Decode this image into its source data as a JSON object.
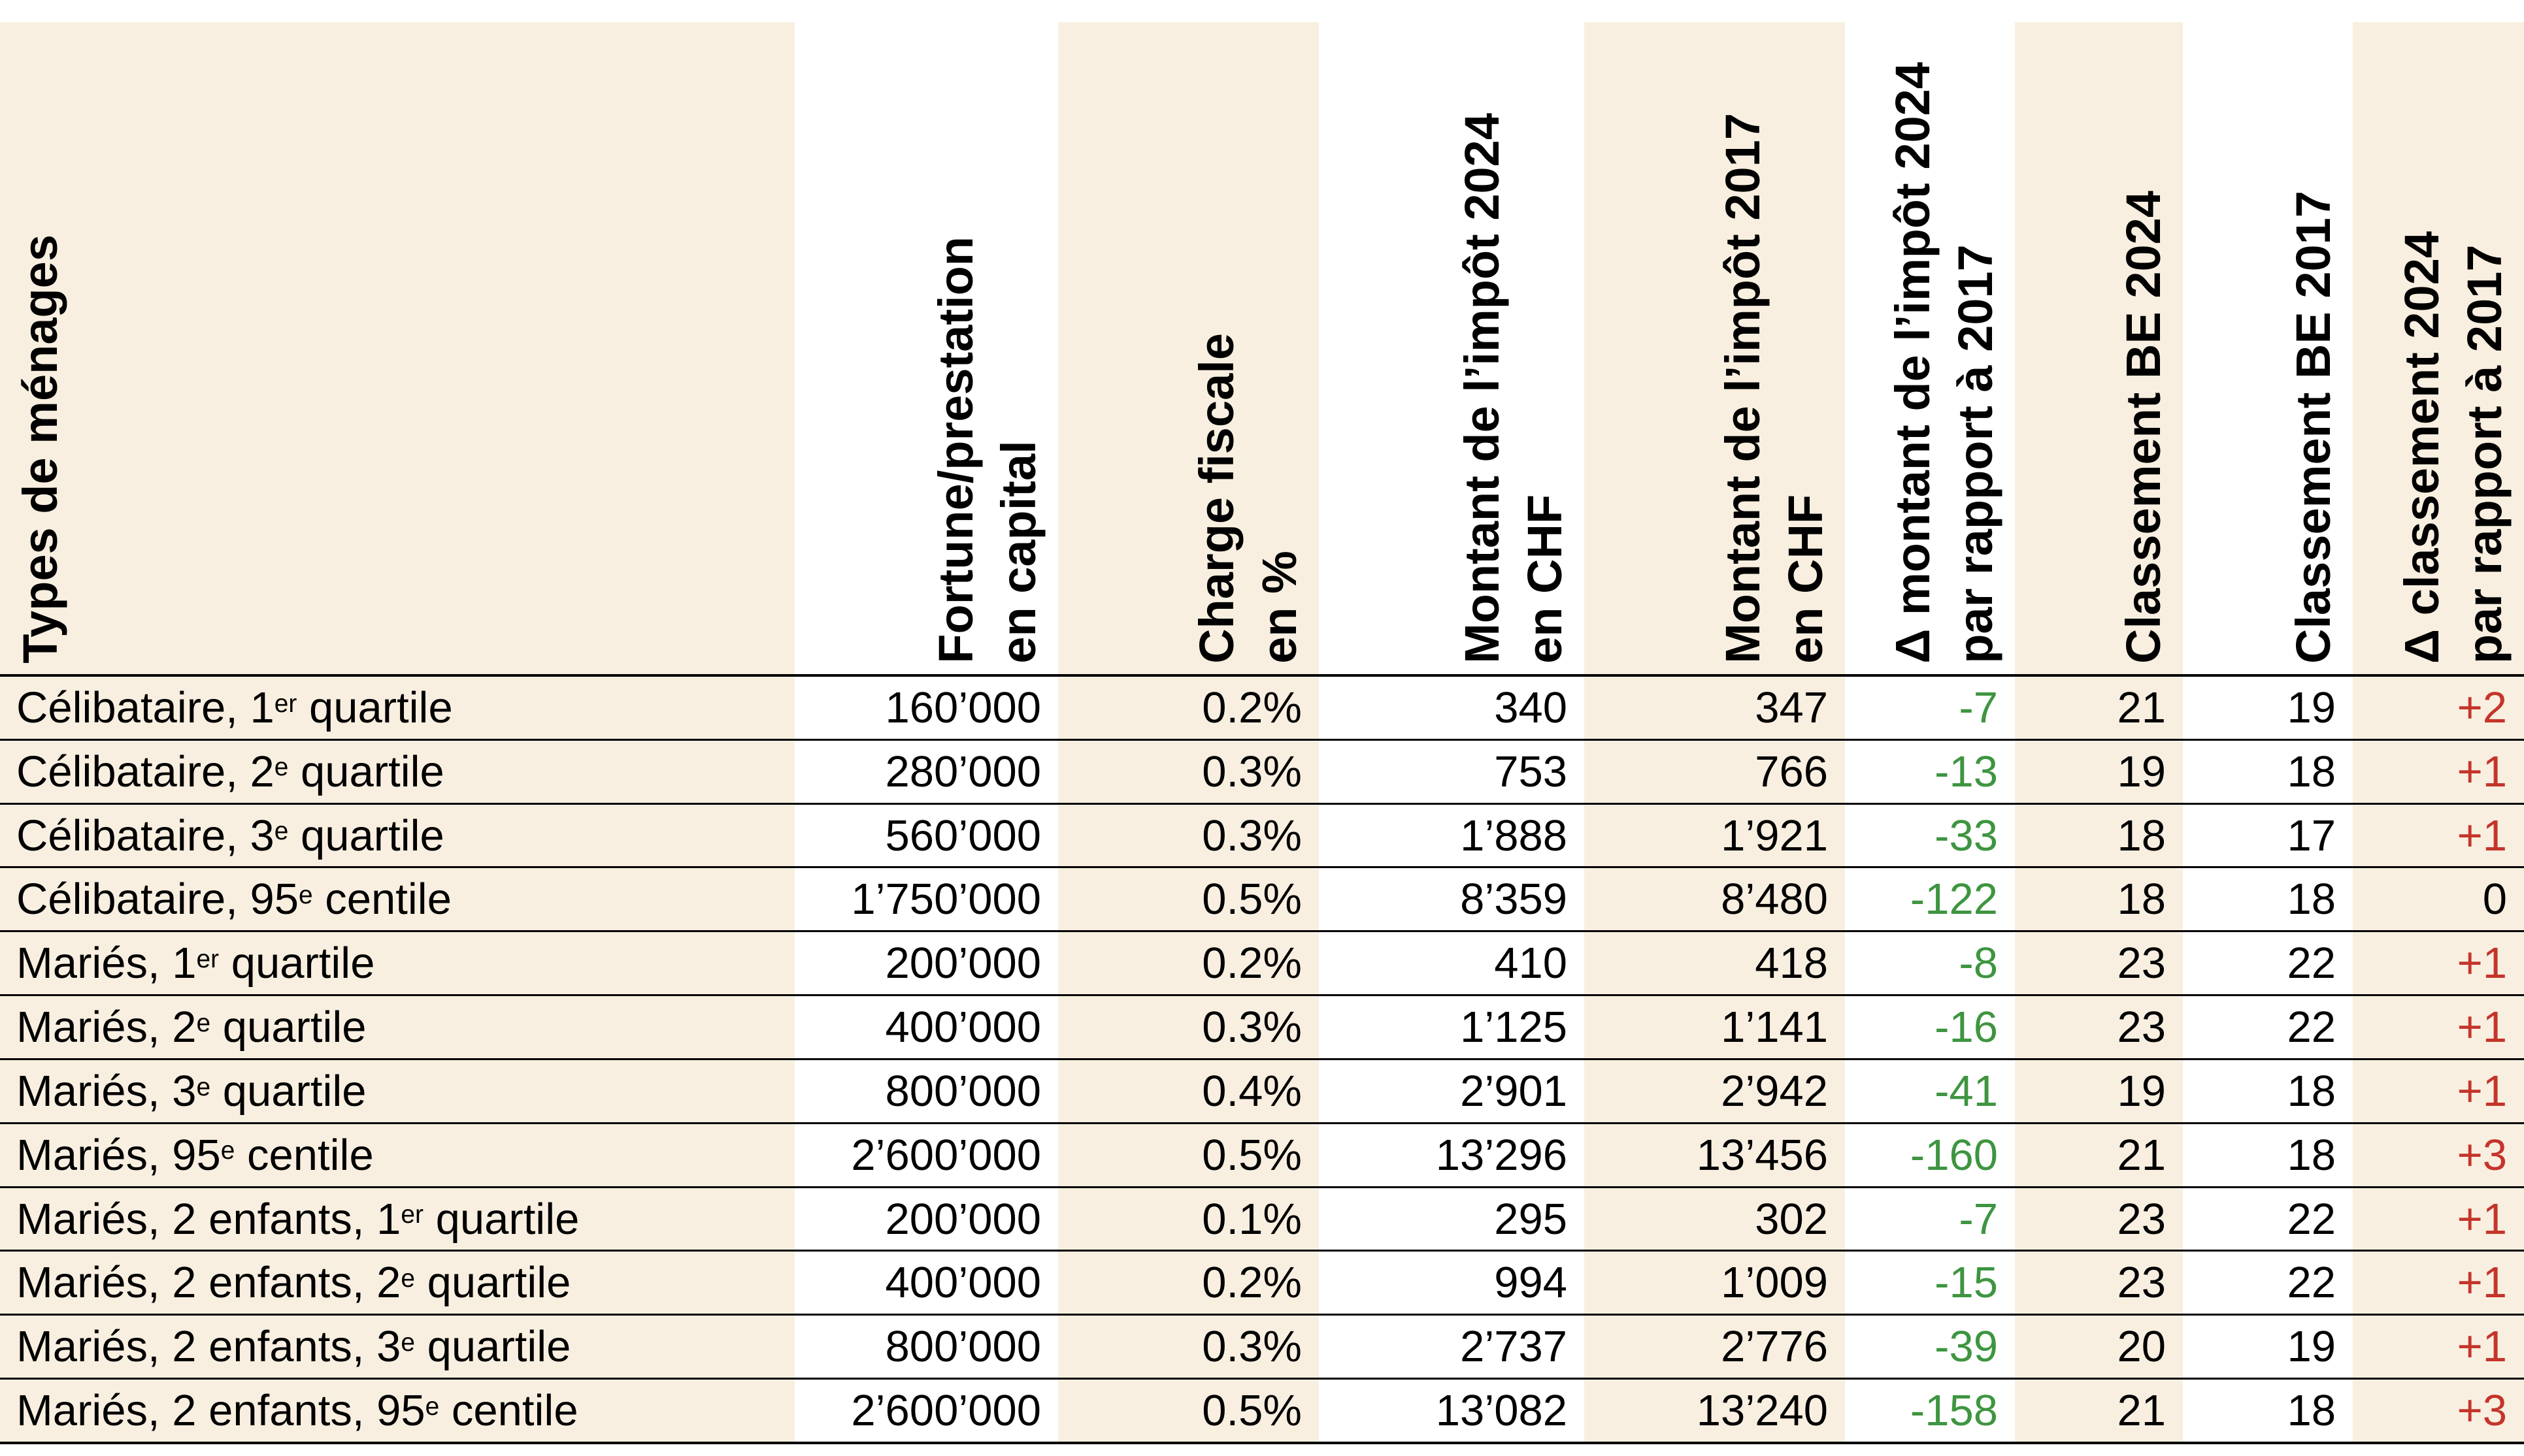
{
  "table": {
    "colors": {
      "shade": "#F8EFE0",
      "delta_tax_green": "#3E9540",
      "delta_rank_red": "#C5342A",
      "text": "#000000",
      "rule": "#000000"
    },
    "columns": [
      {
        "id": "household",
        "label_lines": [
          "Types de ménages"
        ],
        "align": "left",
        "shaded": true
      },
      {
        "id": "fortune",
        "label_lines": [
          "Fortune/prestation",
          "en capital"
        ],
        "align": "right",
        "shaded": false
      },
      {
        "id": "charge",
        "label_lines": [
          "Charge fiscale",
          "en %"
        ],
        "align": "right",
        "shaded": true
      },
      {
        "id": "tax2024",
        "label_lines": [
          "Montant de l’impôt 2024",
          "en CHF"
        ],
        "align": "right",
        "shaded": false
      },
      {
        "id": "tax2017",
        "label_lines": [
          "Montant de l’impôt 2017",
          "en CHF"
        ],
        "align": "right",
        "shaded": true
      },
      {
        "id": "delta_tax",
        "label_lines": [
          "Δ montant de l’impôt 2024",
          "par rapport à 2017"
        ],
        "align": "right",
        "shaded": false
      },
      {
        "id": "rank2024",
        "label_lines": [
          "Classement BE 2024"
        ],
        "align": "right",
        "shaded": true
      },
      {
        "id": "rank2017",
        "label_lines": [
          "Classement BE 2017"
        ],
        "align": "right",
        "shaded": false
      },
      {
        "id": "delta_rank",
        "label_lines": [
          "Δ classement 2024",
          "par rapport à 2017"
        ],
        "align": "right",
        "shaded": true
      }
    ],
    "rows": [
      {
        "household": [
          {
            "t": "Célibataire, 1"
          },
          {
            "t": "er",
            "sup": true
          },
          {
            "t": " quartile"
          }
        ],
        "fortune": "160’000",
        "charge": "0.2%",
        "tax2024": "340",
        "tax2017": "347",
        "delta_tax": "-7",
        "rank2024": "21",
        "rank2017": "19",
        "delta_rank": "+2"
      },
      {
        "household": [
          {
            "t": "Célibataire, 2"
          },
          {
            "t": "e",
            "sup": true
          },
          {
            "t": " quartile"
          }
        ],
        "fortune": "280’000",
        "charge": "0.3%",
        "tax2024": "753",
        "tax2017": "766",
        "delta_tax": "-13",
        "rank2024": "19",
        "rank2017": "18",
        "delta_rank": "+1"
      },
      {
        "household": [
          {
            "t": "Célibataire, 3"
          },
          {
            "t": "e",
            "sup": true
          },
          {
            "t": " quartile"
          }
        ],
        "fortune": "560’000",
        "charge": "0.3%",
        "tax2024": "1’888",
        "tax2017": "1’921",
        "delta_tax": "-33",
        "rank2024": "18",
        "rank2017": "17",
        "delta_rank": "+1"
      },
      {
        "household": [
          {
            "t": "Célibataire, 95"
          },
          {
            "t": "e",
            "sup": true
          },
          {
            "t": " centile"
          }
        ],
        "fortune": "1’750’000",
        "charge": "0.5%",
        "tax2024": "8’359",
        "tax2017": "8’480",
        "delta_tax": "-122",
        "rank2024": "18",
        "rank2017": "18",
        "delta_rank": "0"
      },
      {
        "household": [
          {
            "t": "Mariés, 1"
          },
          {
            "t": "er",
            "sup": true
          },
          {
            "t": " quartile"
          }
        ],
        "fortune": "200’000",
        "charge": "0.2%",
        "tax2024": "410",
        "tax2017": "418",
        "delta_tax": "-8",
        "rank2024": "23",
        "rank2017": "22",
        "delta_rank": "+1"
      },
      {
        "household": [
          {
            "t": "Mariés, 2"
          },
          {
            "t": "e",
            "sup": true
          },
          {
            "t": " quartile"
          }
        ],
        "fortune": "400’000",
        "charge": "0.3%",
        "tax2024": "1’125",
        "tax2017": "1’141",
        "delta_tax": "-16",
        "rank2024": "23",
        "rank2017": "22",
        "delta_rank": "+1"
      },
      {
        "household": [
          {
            "t": "Mariés, 3"
          },
          {
            "t": "e",
            "sup": true
          },
          {
            "t": " quartile"
          }
        ],
        "fortune": "800’000",
        "charge": "0.4%",
        "tax2024": "2’901",
        "tax2017": "2’942",
        "delta_tax": "-41",
        "rank2024": "19",
        "rank2017": "18",
        "delta_rank": "+1"
      },
      {
        "household": [
          {
            "t": "Mariés, 95"
          },
          {
            "t": "e",
            "sup": true
          },
          {
            "t": " centile"
          }
        ],
        "fortune": "2’600’000",
        "charge": "0.5%",
        "tax2024": "13’296",
        "tax2017": "13’456",
        "delta_tax": "-160",
        "rank2024": "21",
        "rank2017": "18",
        "delta_rank": "+3"
      },
      {
        "household": [
          {
            "t": "Mariés, 2 enfants, 1"
          },
          {
            "t": "er",
            "sup": true
          },
          {
            "t": " quartile"
          }
        ],
        "fortune": "200’000",
        "charge": "0.1%",
        "tax2024": "295",
        "tax2017": "302",
        "delta_tax": "-7",
        "rank2024": "23",
        "rank2017": "22",
        "delta_rank": "+1"
      },
      {
        "household": [
          {
            "t": "Mariés, 2 enfants, 2"
          },
          {
            "t": "e",
            "sup": true
          },
          {
            "t": " quartile"
          }
        ],
        "fortune": "400’000",
        "charge": "0.2%",
        "tax2024": "994",
        "tax2017": "1’009",
        "delta_tax": "-15",
        "rank2024": "23",
        "rank2017": "22",
        "delta_rank": "+1"
      },
      {
        "household": [
          {
            "t": "Mariés, 2 enfants, 3"
          },
          {
            "t": "e",
            "sup": true
          },
          {
            "t": " quartile"
          }
        ],
        "fortune": "800’000",
        "charge": "0.3%",
        "tax2024": "2’737",
        "tax2017": "2’776",
        "delta_tax": "-39",
        "rank2024": "20",
        "rank2017": "19",
        "delta_rank": "+1"
      },
      {
        "household": [
          {
            "t": "Mariés, 2 enfants, 95"
          },
          {
            "t": "e",
            "sup": true
          },
          {
            "t": " centile"
          }
        ],
        "fortune": "2’600’000",
        "charge": "0.5%",
        "tax2024": "13’082",
        "tax2017": "13’240",
        "delta_tax": "-158",
        "rank2024": "21",
        "rank2017": "18",
        "delta_rank": "+3"
      }
    ]
  },
  "chart_data": {
    "type": "table",
    "columns": [
      "Types de ménages",
      "Fortune/prestation en capital",
      "Charge fiscale en %",
      "Montant de l’impôt 2024 en CHF",
      "Montant de l’impôt 2017 en CHF",
      "Δ montant de l’impôt 2024 par rapport à 2017",
      "Classement BE 2024",
      "Classement BE 2017",
      "Δ classement 2024 par rapport à 2017"
    ],
    "rows": [
      [
        "Célibataire, 1er quartile",
        "160’000",
        "0.2%",
        "340",
        "347",
        "-7",
        "21",
        "19",
        "+2"
      ],
      [
        "Célibataire, 2e quartile",
        "280’000",
        "0.3%",
        "753",
        "766",
        "-13",
        "19",
        "18",
        "+1"
      ],
      [
        "Célibataire, 3e quartile",
        "560’000",
        "0.3%",
        "1’888",
        "1’921",
        "-33",
        "18",
        "17",
        "+1"
      ],
      [
        "Célibataire, 95e centile",
        "1’750’000",
        "0.5%",
        "8’359",
        "8’480",
        "-122",
        "18",
        "18",
        "0"
      ],
      [
        "Mariés, 1er quartile",
        "200’000",
        "0.2%",
        "410",
        "418",
        "-8",
        "23",
        "22",
        "+1"
      ],
      [
        "Mariés, 2e quartile",
        "400’000",
        "0.3%",
        "1’125",
        "1’141",
        "-16",
        "23",
        "22",
        "+1"
      ],
      [
        "Mariés, 3e quartile",
        "800’000",
        "0.4%",
        "2’901",
        "2’942",
        "-41",
        "19",
        "18",
        "+1"
      ],
      [
        "Mariés, 95e centile",
        "2’600’000",
        "0.5%",
        "13’296",
        "13’456",
        "-160",
        "21",
        "18",
        "+3"
      ],
      [
        "Mariés, 2 enfants, 1er quartile",
        "200’000",
        "0.1%",
        "295",
        "302",
        "-7",
        "23",
        "22",
        "+1"
      ],
      [
        "Mariés, 2 enfants, 2e quartile",
        "400’000",
        "0.2%",
        "994",
        "1’009",
        "-15",
        "23",
        "22",
        "+1"
      ],
      [
        "Mariés, 2 enfants, 3e quartile",
        "800’000",
        "0.3%",
        "2’737",
        "2’776",
        "-39",
        "20",
        "19",
        "+1"
      ],
      [
        "Mariés, 2 enfants, 95e centile",
        "2’600’000",
        "0.5%",
        "13’082",
        "13’240",
        "-158",
        "21",
        "18",
        "+3"
      ]
    ],
    "notes": "Green negative values = tax amount decrease 2024 vs 2017; red values = ranking increase 2024 vs 2017; shaded beige column stripes alternate with white."
  }
}
